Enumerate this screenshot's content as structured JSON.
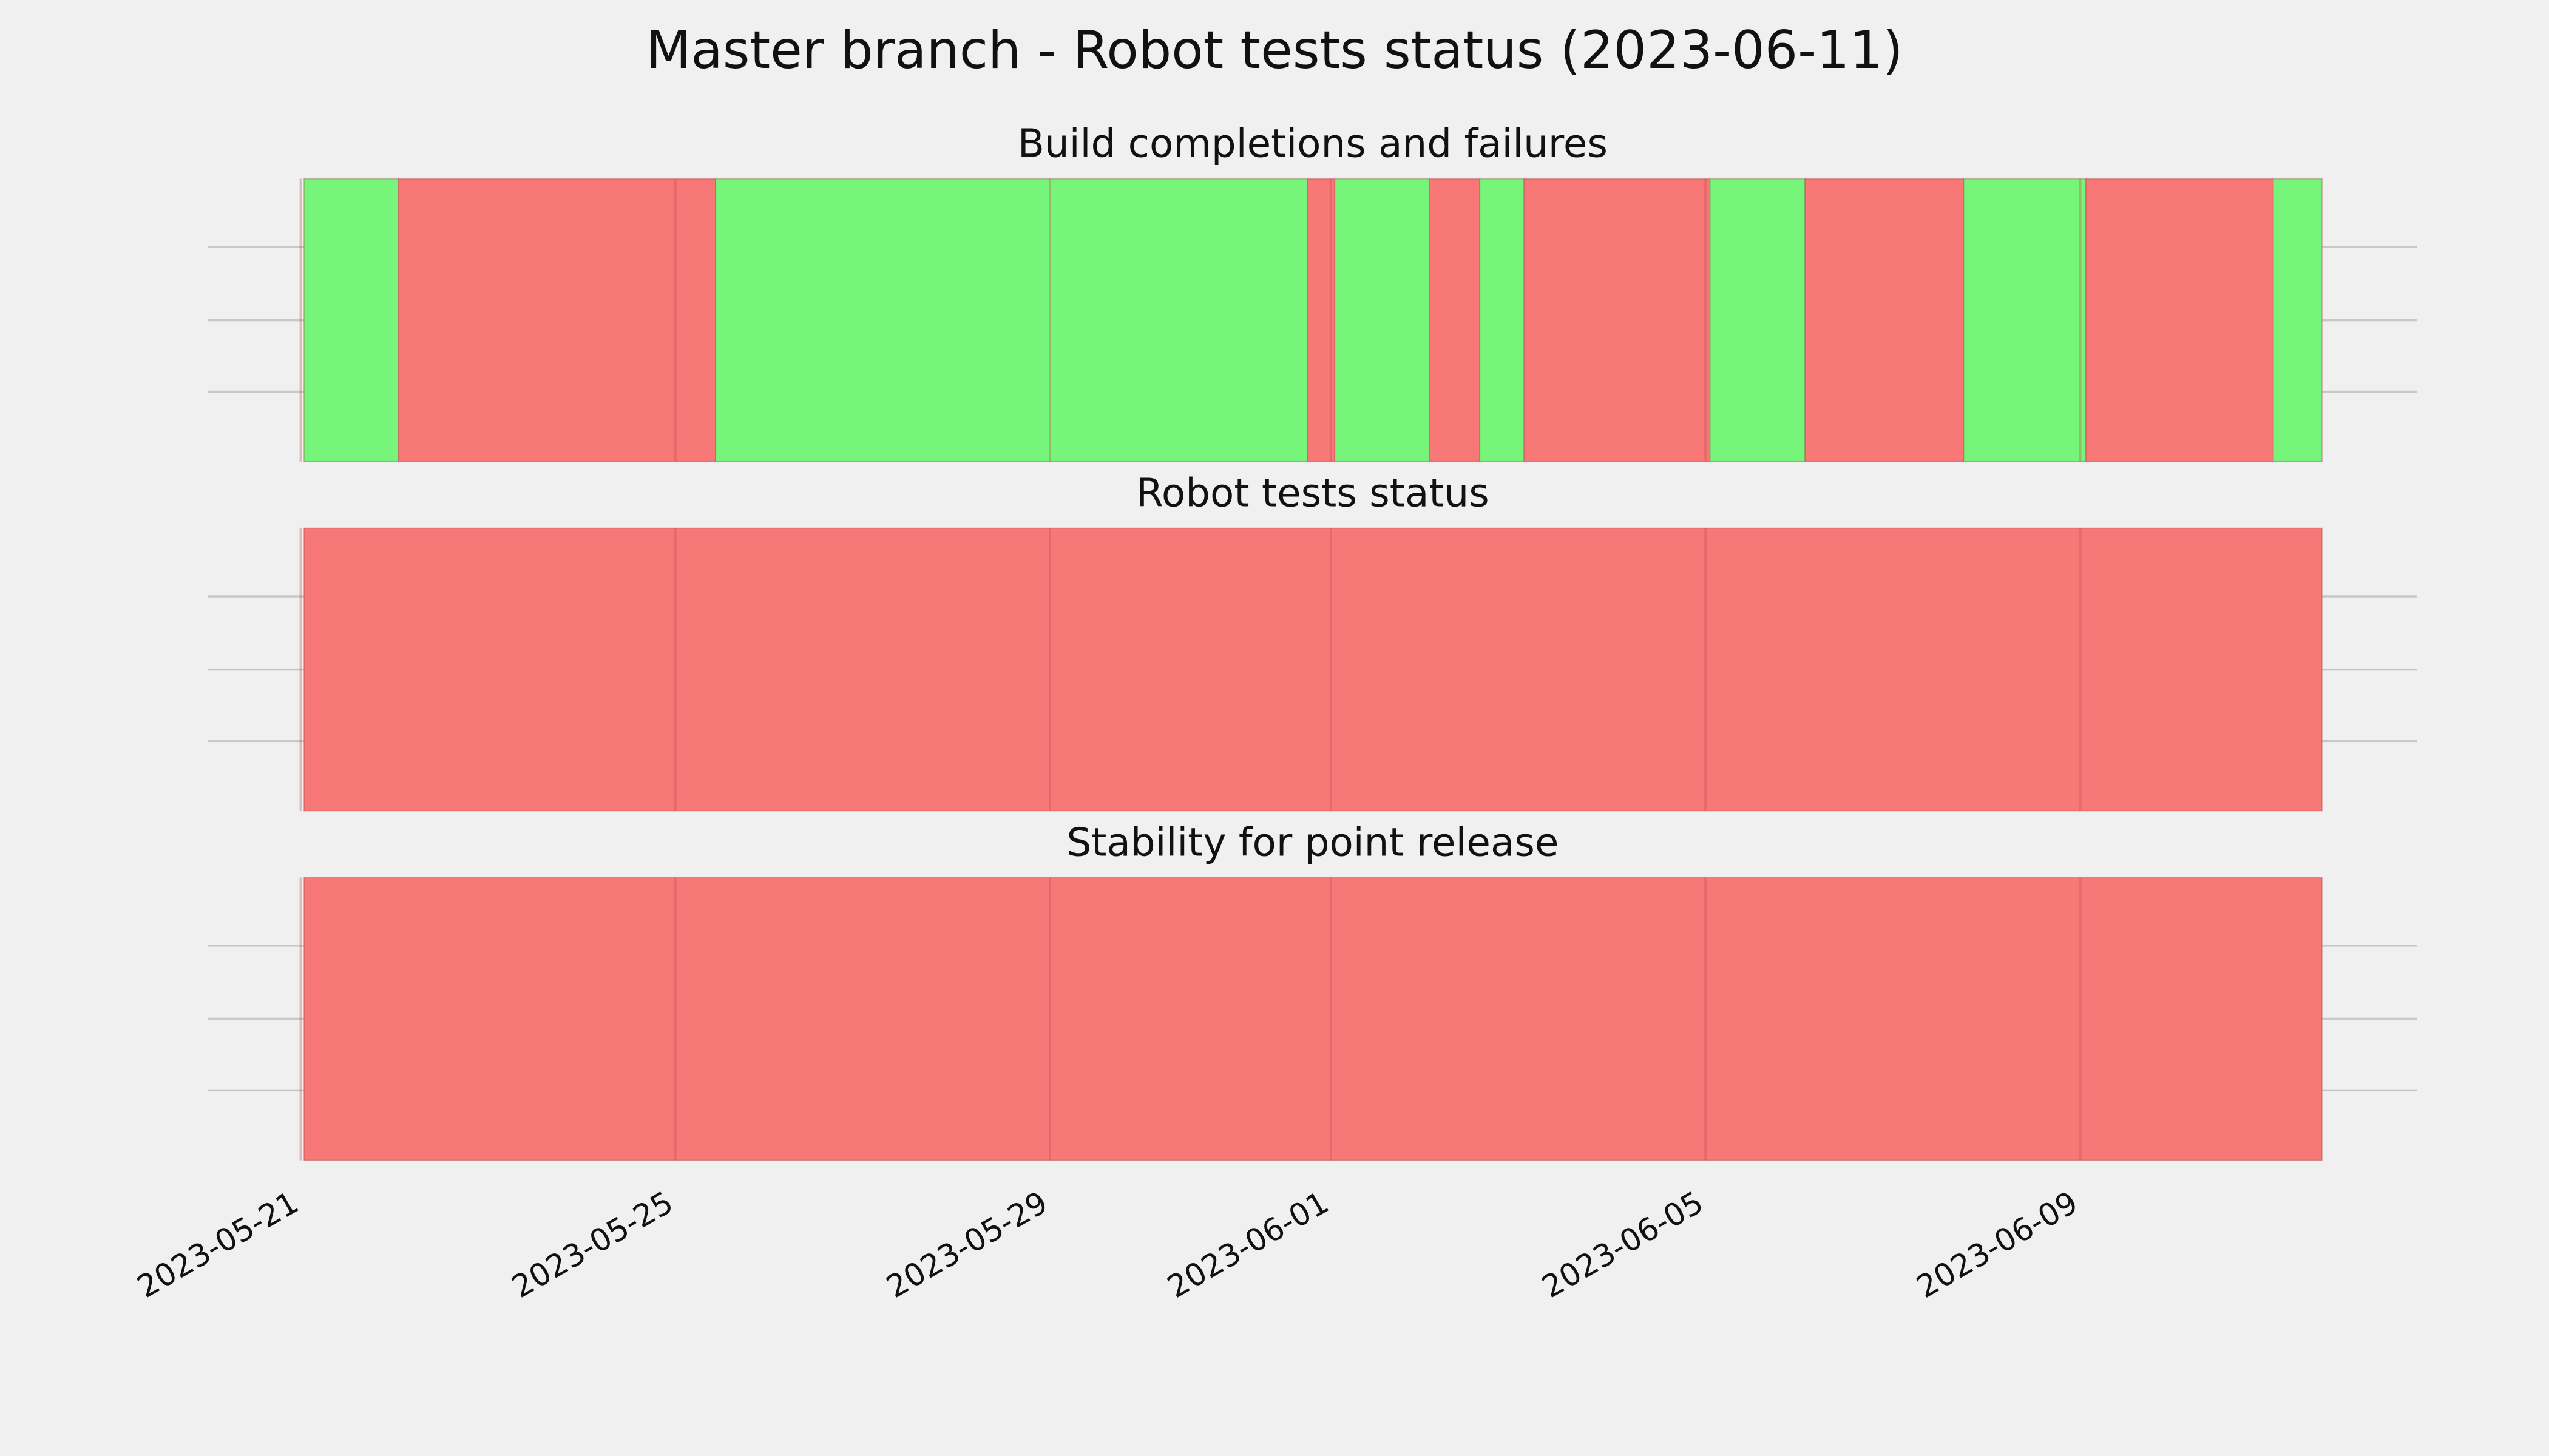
{
  "title": "Master branch - Robot tests status (2023-06-11)",
  "chart_data": [
    {
      "type": "timeline",
      "title": "Build completions and failures",
      "xlim": [
        "2023-05-20T00:15",
        "2023-06-12T14:25"
      ],
      "xticks": [
        "2023-05-21",
        "2023-05-25",
        "2023-05-29",
        "2023-06-01",
        "2023-06-05",
        "2023-06-09"
      ],
      "grid": true,
      "spans": [
        {
          "start": "2023-05-21T00:50",
          "end": "2023-05-22T01:00",
          "color": "#76f57a"
        },
        {
          "start": "2023-05-22T01:00",
          "end": "2023-05-25T10:20",
          "color": "#f87777"
        },
        {
          "start": "2023-05-25T10:20",
          "end": "2023-05-31T18:00",
          "color": "#76f57a"
        },
        {
          "start": "2023-05-31T18:00",
          "end": "2023-06-01T01:00",
          "color": "#f87777"
        },
        {
          "start": "2023-06-01T01:00",
          "end": "2023-06-02T01:10",
          "color": "#76f57a"
        },
        {
          "start": "2023-06-02T01:10",
          "end": "2023-06-02T14:10",
          "color": "#f87777"
        },
        {
          "start": "2023-06-02T14:10",
          "end": "2023-06-03T01:30",
          "color": "#76f57a"
        },
        {
          "start": "2023-06-03T01:30",
          "end": "2023-06-05T01:10",
          "color": "#f87777"
        },
        {
          "start": "2023-06-05T01:10",
          "end": "2023-06-06T01:30",
          "color": "#76f57a"
        },
        {
          "start": "2023-06-06T01:30",
          "end": "2023-06-07T18:10",
          "color": "#f87777"
        },
        {
          "start": "2023-06-07T18:10",
          "end": "2023-06-09T01:30",
          "color": "#76f57a"
        },
        {
          "start": "2023-06-09T01:30",
          "end": "2023-06-11T01:30",
          "color": "#f87777"
        },
        {
          "start": "2023-06-11T01:30",
          "end": "2023-06-11T14:00",
          "color": "#76f57a"
        }
      ]
    },
    {
      "type": "timeline",
      "title": "Robot tests status",
      "xlim": [
        "2023-05-20T00:15",
        "2023-06-12T14:25"
      ],
      "xticks": [
        "2023-05-21",
        "2023-05-25",
        "2023-05-29",
        "2023-06-01",
        "2023-06-05",
        "2023-06-09"
      ],
      "grid": true,
      "spans": [
        {
          "start": "2023-05-21T00:50",
          "end": "2023-06-11T14:00",
          "color": "#f87777"
        }
      ]
    },
    {
      "type": "timeline",
      "title": "Stability for point release",
      "xlim": [
        "2023-05-20T00:15",
        "2023-06-12T14:25"
      ],
      "xticks": [
        "2023-05-21",
        "2023-05-25",
        "2023-05-29",
        "2023-06-01",
        "2023-06-05",
        "2023-06-09"
      ],
      "grid": true,
      "spans": [
        {
          "start": "2023-05-21T00:50",
          "end": "2023-06-11T14:00",
          "color": "#f87777"
        }
      ]
    }
  ]
}
